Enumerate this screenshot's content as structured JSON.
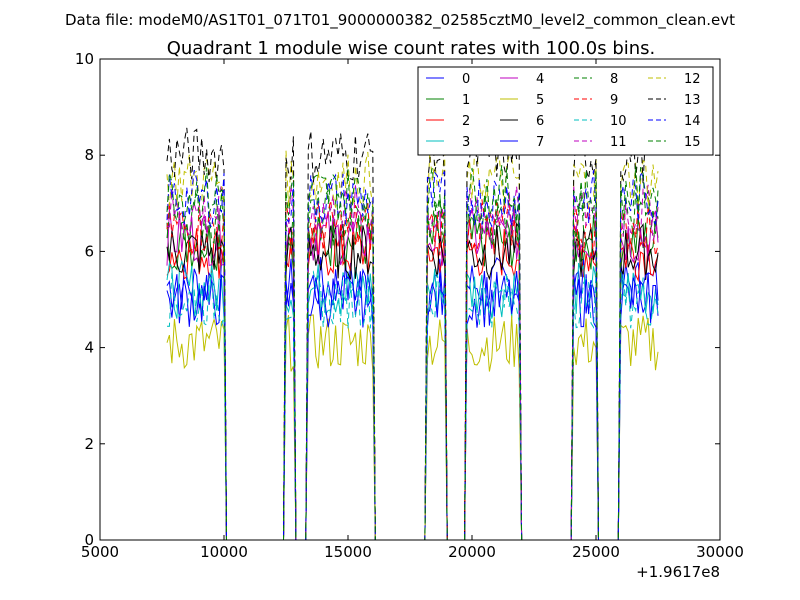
{
  "header": {
    "data_file": "Data file: modeM0/AS1T01_071T01_9000000382_02585cztM0_level2_common_clean.evt"
  },
  "chart_data": {
    "type": "line",
    "title": "Quadrant 1 module wise count rates with 100.0s bins.",
    "xlabel": "",
    "ylabel": "",
    "xlim": [
      5000,
      30000
    ],
    "ylim": [
      0,
      10
    ],
    "x_offset_label": "+1.9617e8",
    "x_ticks": [
      5000,
      10000,
      15000,
      20000,
      25000,
      30000
    ],
    "y_ticks": [
      0,
      2,
      4,
      6,
      8,
      10
    ],
    "grid": false,
    "legend": {
      "position": "top-right",
      "columns": 4,
      "entries": [
        "0",
        "1",
        "2",
        "3",
        "4",
        "5",
        "6",
        "7",
        "8",
        "9",
        "10",
        "11",
        "12",
        "13",
        "14",
        "15"
      ]
    },
    "data_segments": [
      [
        7700,
        10050
      ],
      [
        12500,
        12800
      ],
      [
        13400,
        16050
      ],
      [
        18150,
        18950
      ],
      [
        19750,
        21900
      ],
      [
        24100,
        25000
      ],
      [
        25950,
        27500
      ]
    ],
    "series": [
      {
        "name": "0",
        "color": "#0000ff",
        "dash": "solid",
        "level": 5.3
      },
      {
        "name": "1",
        "color": "#008000",
        "dash": "solid",
        "level": 6.2
      },
      {
        "name": "2",
        "color": "#ff0000",
        "dash": "solid",
        "level": 6.0
      },
      {
        "name": "3",
        "color": "#00bfbf",
        "dash": "solid",
        "level": 5.2
      },
      {
        "name": "4",
        "color": "#bf00bf",
        "dash": "solid",
        "level": 6.3
      },
      {
        "name": "5",
        "color": "#bfbf00",
        "dash": "solid",
        "level": 4.1
      },
      {
        "name": "6",
        "color": "#000000",
        "dash": "solid",
        "level": 6.0
      },
      {
        "name": "7",
        "color": "#0000ff",
        "dash": "solid",
        "level": 5.0
      },
      {
        "name": "8",
        "color": "#008000",
        "dash": "dashed",
        "level": 6.7
      },
      {
        "name": "9",
        "color": "#ff0000",
        "dash": "dashed",
        "level": 6.5
      },
      {
        "name": "10",
        "color": "#00bfbf",
        "dash": "dashed",
        "level": 5.0
      },
      {
        "name": "11",
        "color": "#bf00bf",
        "dash": "dashed",
        "level": 6.8
      },
      {
        "name": "12",
        "color": "#bfbf00",
        "dash": "dashed",
        "level": 7.5
      },
      {
        "name": "13",
        "color": "#000000",
        "dash": "dashed",
        "level": 8.0
      },
      {
        "name": "14",
        "color": "#0000ff",
        "dash": "dashed",
        "level": 7.1
      },
      {
        "name": "15",
        "color": "#008000",
        "dash": "dashed",
        "level": 7.2
      }
    ]
  }
}
